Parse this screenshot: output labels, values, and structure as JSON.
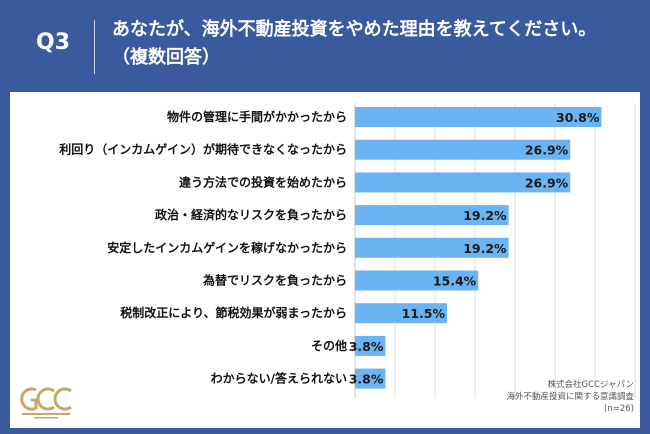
{
  "header": {
    "question_number": "Q3",
    "question_line1": "あなたが、海外不動産投資をやめた理由を教えてください。",
    "question_line2": "（複数回答）"
  },
  "source": {
    "company": "株式会社GCCジャパン",
    "survey": "海外不動産投資に関する意識調査",
    "sample": "(n=26)"
  },
  "colors": {
    "background": "#3a5a9e",
    "bar": "#6ab4f2",
    "grid": "#dddddd"
  },
  "chart_data": {
    "type": "bar",
    "orientation": "horizontal",
    "categories": [
      "物件の管理に手間がかかったから",
      "利回り（インカムゲイン）が期待できなくなったから",
      "違う方法での投資を始めたから",
      "政治・経済的なリスクを負ったから",
      "安定したインカムゲインを稼げなかったから",
      "為替でリスクを負ったから",
      "税制改正により、節税効果が弱まったから",
      "その他",
      "わからない/答えられない"
    ],
    "values": [
      30.8,
      26.9,
      26.9,
      19.2,
      19.2,
      15.4,
      11.5,
      3.8,
      3.8
    ],
    "value_labels": [
      "30.8%",
      "26.9%",
      "26.9%",
      "19.2%",
      "19.2%",
      "15.4%",
      "11.5%",
      "3.8%",
      "3.8%"
    ],
    "xlim": [
      0,
      35
    ],
    "grid": true
  }
}
